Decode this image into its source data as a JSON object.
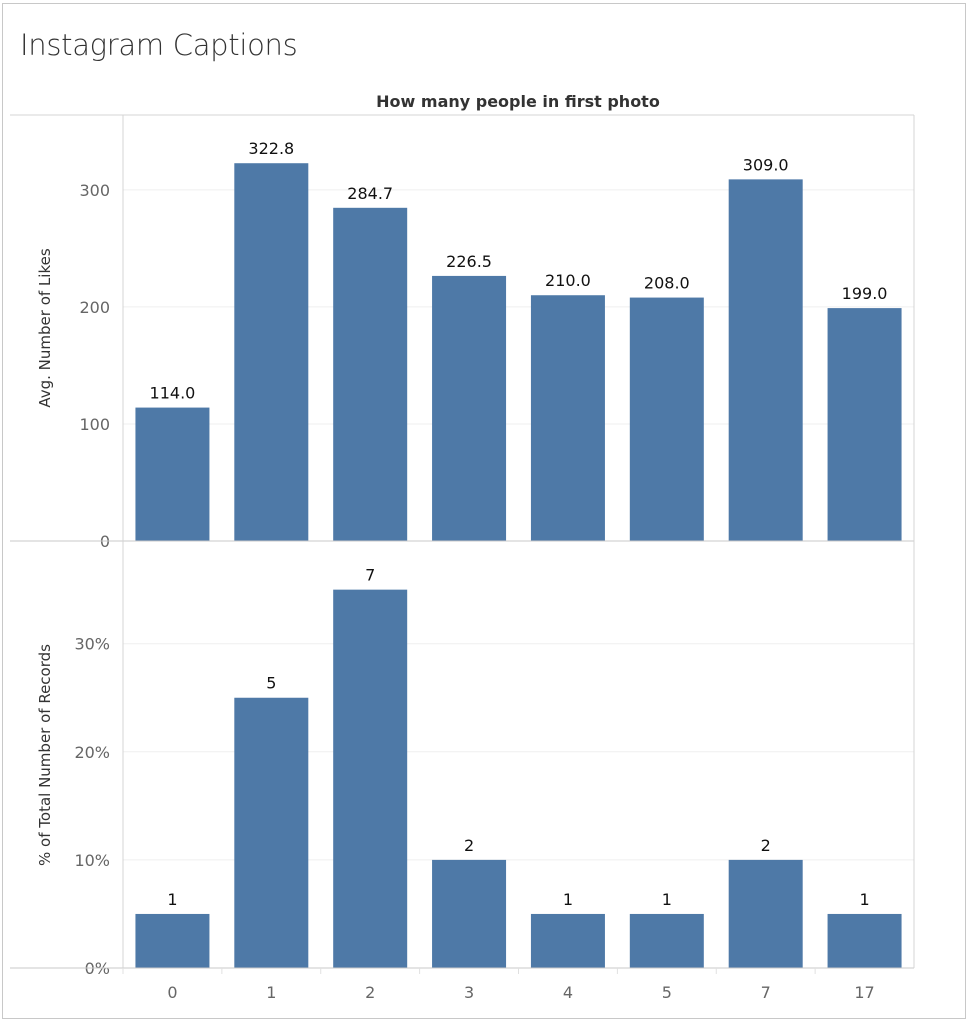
{
  "title": "Instagram Captions",
  "chart_data": [
    {
      "type": "bar",
      "title": "How many people in first photo",
      "xlabel": "How many people in first photo",
      "ylabel": "Avg. Number of Likes",
      "categories": [
        "0",
        "1",
        "2",
        "3",
        "4",
        "5",
        "7",
        "17"
      ],
      "values": [
        114.0,
        322.8,
        284.7,
        226.5,
        210.0,
        208.0,
        309.0,
        199.0
      ],
      "data_labels": [
        "114.0",
        "322.8",
        "284.7",
        "226.5",
        "210.0",
        "208.0",
        "309.0",
        "199.0"
      ],
      "yticks": [
        0,
        100,
        200,
        300
      ],
      "ytick_labels": [
        "0",
        "100",
        "200",
        "300"
      ],
      "ylim": [
        0,
        364
      ],
      "grid": true,
      "color": "#4e79a7"
    },
    {
      "type": "bar",
      "ylabel": "% of Total Number of Records",
      "categories": [
        "0",
        "1",
        "2",
        "3",
        "4",
        "5",
        "7",
        "17"
      ],
      "values": [
        5,
        25,
        35,
        10,
        5,
        5,
        10,
        5
      ],
      "data_labels": [
        "1",
        "5",
        "7",
        "2",
        "1",
        "1",
        "2",
        "1"
      ],
      "yticks": [
        0,
        10,
        20,
        30
      ],
      "ytick_labels": [
        "0%",
        "10%",
        "20%",
        "30%"
      ],
      "ylim": [
        0,
        39.5
      ],
      "grid": true,
      "color": "#4e79a7"
    }
  ]
}
